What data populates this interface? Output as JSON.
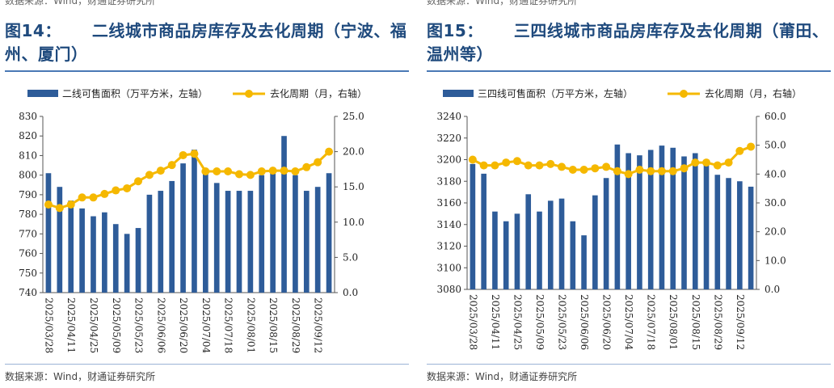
{
  "panels": [
    {
      "top_source": "数据来源：Wind，财通证券研究所",
      "fig_num": "图14：",
      "fig_title": "二线城市商品房库存及去化周期（宁波、福州、厦门）",
      "bottom_source": "数据来源：Wind，财通证券研究所"
    },
    {
      "top_source": "数据来源：Wind，财通证券研究所",
      "fig_num": "图15：",
      "fig_title": "三四线城市商品房库存及去化周期（莆田、温州等）",
      "bottom_source": "数据来源：Wind，财通证券研究所"
    }
  ],
  "colors": {
    "bar": "#2e5c99",
    "line": "#f5b800",
    "title": "#1f4a7d"
  },
  "chart_data": [
    {
      "type": "bar+line",
      "x": [
        "2025/03/28",
        "2025/04/04",
        "2025/04/11",
        "2025/04/18",
        "2025/04/25",
        "2025/05/02",
        "2025/05/09",
        "2025/05/16",
        "2025/05/23",
        "2025/05/30",
        "2025/06/06",
        "2025/06/13",
        "2025/06/20",
        "2025/06/27",
        "2025/07/04",
        "2025/07/11",
        "2025/07/18",
        "2025/07/25",
        "2025/08/01",
        "2025/08/08",
        "2025/08/15",
        "2025/08/22",
        "2025/08/29",
        "2025/09/05",
        "2025/09/12",
        "2025/09/19"
      ],
      "x_tick_labels": [
        "2025/03/28",
        "2025/04/11",
        "2025/04/25",
        "2025/05/09",
        "2025/05/23",
        "2025/06/06",
        "2025/06/20",
        "2025/07/04",
        "2025/07/18",
        "2025/08/01",
        "2025/08/15",
        "2025/08/29",
        "2025/09/12"
      ],
      "series": [
        {
          "name": "二线可售面积（万平方米，左轴）",
          "type": "bar",
          "axis": "left",
          "values": [
            801,
            794,
            787,
            783,
            779,
            781,
            775,
            770,
            773,
            790,
            792,
            797,
            806,
            813,
            803,
            796,
            792,
            792,
            792,
            800,
            801,
            820,
            800,
            792,
            794,
            801
          ]
        },
        {
          "name": "去化周期（月，右轴）",
          "type": "line",
          "axis": "right",
          "values": [
            12.5,
            12.0,
            12.5,
            13.5,
            13.5,
            14.0,
            14.5,
            14.8,
            15.8,
            16.7,
            17.3,
            18.1,
            19.5,
            19.7,
            17.2,
            17.2,
            17.2,
            16.8,
            16.7,
            17.2,
            17.3,
            17.3,
            17.2,
            17.8,
            18.5,
            20.0
          ]
        }
      ],
      "left_axis": {
        "min": 740,
        "max": 830,
        "ticks": [
          "740",
          "750",
          "760",
          "770",
          "780",
          "790",
          "800",
          "810",
          "820",
          "830"
        ]
      },
      "right_axis": {
        "min": 0,
        "max": 25,
        "ticks": [
          "0.0",
          "5.0",
          "10.0",
          "15.0",
          "20.0",
          "25.0"
        ]
      },
      "legend_position": "top"
    },
    {
      "type": "bar+line",
      "x": [
        "2025/03/28",
        "2025/04/04",
        "2025/04/11",
        "2025/04/18",
        "2025/04/25",
        "2025/05/02",
        "2025/05/09",
        "2025/05/16",
        "2025/05/23",
        "2025/05/30",
        "2025/06/06",
        "2025/06/13",
        "2025/06/20",
        "2025/06/27",
        "2025/07/04",
        "2025/07/11",
        "2025/07/18",
        "2025/07/25",
        "2025/08/01",
        "2025/08/08",
        "2025/08/15",
        "2025/08/22",
        "2025/08/29",
        "2025/09/05",
        "2025/09/12",
        "2025/09/19"
      ],
      "x_tick_labels": [
        "2025/03/28",
        "2025/04/11",
        "2025/04/25",
        "2025/05/09",
        "2025/05/23",
        "2025/06/06",
        "2025/06/20",
        "2025/07/04",
        "2025/07/18",
        "2025/08/01",
        "2025/08/15",
        "2025/08/29",
        "2025/09/12"
      ],
      "series": [
        {
          "name": "三四线可售面积（万平方米，左轴）",
          "type": "bar",
          "axis": "left",
          "values": [
            3196,
            3187,
            3152,
            3143,
            3150,
            3168,
            3152,
            3162,
            3164,
            3143,
            3130,
            3167,
            3183,
            3214,
            3206,
            3204,
            3209,
            3213,
            3211,
            3203,
            3206,
            3196,
            3186,
            3183,
            3180,
            3175
          ]
        },
        {
          "name": "去化周期（月，右轴）",
          "type": "line",
          "axis": "right",
          "values": [
            45.0,
            43.0,
            43.0,
            44.0,
            44.5,
            43.0,
            43.0,
            43.5,
            42.5,
            41.5,
            41.5,
            42.0,
            42.5,
            41.0,
            40.0,
            41.5,
            41.0,
            41.0,
            41.0,
            42.0,
            44.0,
            44.0,
            43.0,
            44.0,
            48.0,
            49.5
          ]
        }
      ],
      "left_axis": {
        "min": 3080,
        "max": 3240,
        "ticks": [
          "3080",
          "3100",
          "3120",
          "3140",
          "3160",
          "3180",
          "3200",
          "3220",
          "3240"
        ]
      },
      "right_axis": {
        "min": 0,
        "max": 60,
        "ticks": [
          "0.0",
          "10.0",
          "20.0",
          "30.0",
          "40.0",
          "50.0",
          "60.0"
        ]
      },
      "legend_position": "top"
    }
  ]
}
